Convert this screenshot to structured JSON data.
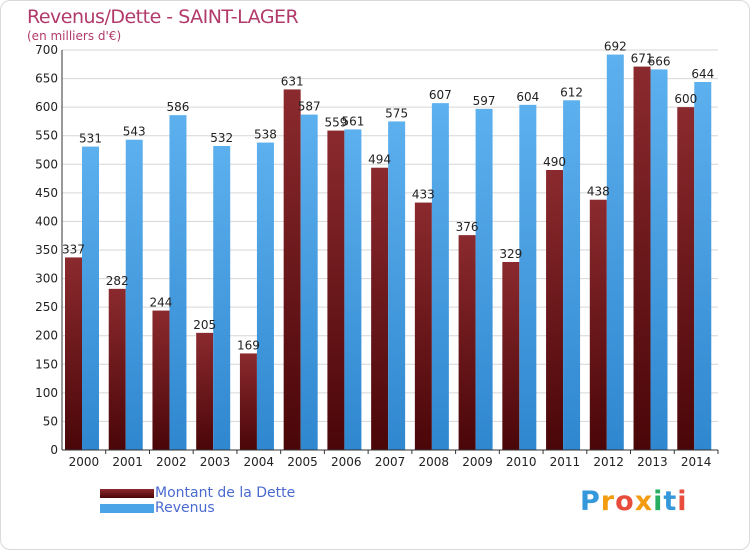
{
  "header": {
    "title": "Revenus/Dette - SAINT-LAGER",
    "subtitle": "(en milliers d'€)"
  },
  "chart_data": {
    "type": "bar",
    "categories": [
      "2000",
      "2001",
      "2002",
      "2003",
      "2004",
      "2005",
      "2006",
      "2007",
      "2008",
      "2009",
      "2010",
      "2011",
      "2012",
      "2013",
      "2014"
    ],
    "series": [
      {
        "name": "Montant de la Dette",
        "color": "#7a1f24",
        "values": [
          337,
          282,
          244,
          205,
          169,
          631,
          559,
          494,
          433,
          376,
          329,
          490,
          438,
          671,
          600
        ]
      },
      {
        "name": "Revenus",
        "color": "#4aa3e6",
        "values": [
          531,
          543,
          586,
          532,
          538,
          587,
          561,
          575,
          607,
          597,
          604,
          612,
          692,
          666,
          644
        ]
      }
    ],
    "ylim": [
      0,
      700
    ],
    "yticks": [
      0,
      50,
      100,
      150,
      200,
      250,
      300,
      350,
      400,
      450,
      500,
      550,
      600,
      650,
      700
    ],
    "grid": true
  },
  "legend": {
    "items": [
      {
        "label": "Montant de la Dette",
        "color": "#6b1418"
      },
      {
        "label": "Revenus",
        "color": "#4aa3e6"
      }
    ]
  },
  "logo": {
    "text": "Proxiti"
  }
}
